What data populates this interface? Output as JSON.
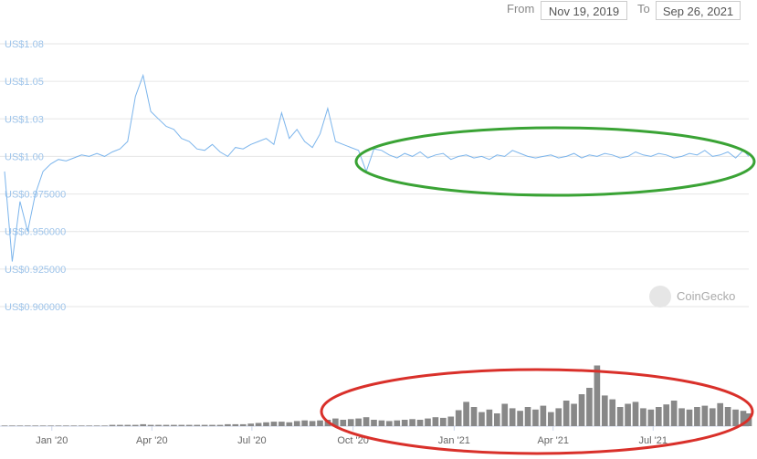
{
  "chart_data": {
    "type": "line",
    "from_label": "From",
    "from_value": "Nov 19, 2019",
    "to_label": "To",
    "to_value": "Sep 26, 2021",
    "watermark": "CoinGecko",
    "color": "#7cb5ec",
    "volume_color": "#888888",
    "xlim": [
      "2019-11-19",
      "2021-09-26"
    ],
    "xticks": [
      {
        "value": "2020-01-01",
        "label": "Jan '20"
      },
      {
        "value": "2020-04-01",
        "label": "Apr '20"
      },
      {
        "value": "2020-07-01",
        "label": "Jul '20"
      },
      {
        "value": "2020-10-01",
        "label": "Oct '20"
      },
      {
        "value": "2021-01-01",
        "label": "Jan '21"
      },
      {
        "value": "2021-04-01",
        "label": "Apr '21"
      },
      {
        "value": "2021-07-01",
        "label": "Jul '21"
      }
    ],
    "ylim": [
      0.9,
      1.075
    ],
    "yticks": [
      {
        "value": 1.075,
        "label": "US$1.08"
      },
      {
        "value": 1.05,
        "label": "US$1.05"
      },
      {
        "value": 1.025,
        "label": "US$1.03"
      },
      {
        "value": 1.0,
        "label": "US$1.00"
      },
      {
        "value": 0.975,
        "label": "US$0.975000"
      },
      {
        "value": 0.95,
        "label": "US$0.950000"
      },
      {
        "value": 0.925,
        "label": "US$0.925000"
      },
      {
        "value": 0.9,
        "label": "US$0.900000"
      }
    ],
    "grid": true,
    "volume_ylim": [
      0,
      100
    ],
    "x": [
      "2019-11-19",
      "2019-11-26",
      "2019-12-03",
      "2019-12-10",
      "2019-12-17",
      "2019-12-24",
      "2019-12-31",
      "2020-01-07",
      "2020-01-14",
      "2020-01-21",
      "2020-01-28",
      "2020-02-04",
      "2020-02-11",
      "2020-02-18",
      "2020-02-25",
      "2020-03-03",
      "2020-03-10",
      "2020-03-17",
      "2020-03-24",
      "2020-03-31",
      "2020-04-07",
      "2020-04-14",
      "2020-04-21",
      "2020-04-28",
      "2020-05-05",
      "2020-05-12",
      "2020-05-19",
      "2020-05-26",
      "2020-06-02",
      "2020-06-09",
      "2020-06-16",
      "2020-06-23",
      "2020-06-30",
      "2020-07-07",
      "2020-07-14",
      "2020-07-21",
      "2020-07-28",
      "2020-08-04",
      "2020-08-11",
      "2020-08-18",
      "2020-08-25",
      "2020-09-01",
      "2020-09-08",
      "2020-09-15",
      "2020-09-22",
      "2020-09-29",
      "2020-10-06",
      "2020-10-13",
      "2020-10-20",
      "2020-10-27",
      "2020-11-03",
      "2020-11-10",
      "2020-11-17",
      "2020-11-24",
      "2020-12-01",
      "2020-12-08",
      "2020-12-15",
      "2020-12-22",
      "2020-12-29",
      "2021-01-05",
      "2021-01-12",
      "2021-01-19",
      "2021-01-26",
      "2021-02-02",
      "2021-02-09",
      "2021-02-16",
      "2021-02-23",
      "2021-03-02",
      "2021-03-09",
      "2021-03-16",
      "2021-03-23",
      "2021-03-30",
      "2021-04-06",
      "2021-04-13",
      "2021-04-20",
      "2021-04-27",
      "2021-05-04",
      "2021-05-11",
      "2021-05-18",
      "2021-05-25",
      "2021-06-01",
      "2021-06-08",
      "2021-06-15",
      "2021-06-22",
      "2021-06-29",
      "2021-07-06",
      "2021-07-13",
      "2021-07-20",
      "2021-07-27",
      "2021-08-03",
      "2021-08-10",
      "2021-08-17",
      "2021-08-24",
      "2021-08-31",
      "2021-09-07",
      "2021-09-14",
      "2021-09-21",
      "2021-09-26"
    ],
    "values": [
      0.99,
      0.93,
      0.97,
      0.95,
      0.975,
      0.99,
      0.995,
      0.998,
      0.997,
      0.999,
      1.001,
      1.0,
      1.002,
      1.0,
      1.003,
      1.005,
      1.01,
      1.04,
      1.054,
      1.03,
      1.025,
      1.02,
      1.018,
      1.012,
      1.01,
      1.005,
      1.004,
      1.008,
      1.003,
      1.0,
      1.006,
      1.005,
      1.008,
      1.01,
      1.012,
      1.008,
      1.029,
      1.012,
      1.018,
      1.01,
      1.006,
      1.015,
      1.032,
      1.01,
      1.008,
      1.006,
      1.004,
      0.99,
      1.005,
      1.004,
      1.001,
      0.999,
      1.002,
      1.0,
      1.003,
      0.999,
      1.001,
      1.002,
      0.998,
      1.0,
      1.001,
      0.999,
      1.0,
      0.998,
      1.001,
      1.0,
      1.004,
      1.002,
      1.0,
      0.999,
      1.0,
      1.001,
      0.999,
      1.0,
      1.002,
      0.999,
      1.001,
      1.0,
      1.002,
      1.001,
      0.999,
      1.0,
      1.003,
      1.001,
      1.0,
      1.002,
      1.001,
      0.999,
      1.0,
      1.002,
      1.001,
      1.004,
      1.0,
      1.001,
      1.003,
      0.999,
      1.004,
      1.0
    ],
    "volume": [
      1,
      1,
      1,
      1,
      1,
      1,
      1,
      1,
      1,
      1,
      1,
      1,
      1,
      1,
      2,
      2,
      2,
      2,
      3,
      2,
      2,
      2,
      2,
      2,
      2,
      2,
      2,
      2,
      2,
      3,
      3,
      3,
      4,
      5,
      6,
      7,
      7,
      6,
      8,
      9,
      8,
      9,
      10,
      12,
      10,
      11,
      12,
      14,
      10,
      9,
      8,
      9,
      10,
      11,
      10,
      12,
      14,
      13,
      15,
      25,
      38,
      30,
      22,
      26,
      20,
      35,
      28,
      24,
      30,
      26,
      32,
      22,
      28,
      40,
      35,
      50,
      60,
      95,
      48,
      42,
      30,
      35,
      38,
      28,
      26,
      30,
      34,
      40,
      28,
      26,
      30,
      32,
      28,
      36,
      30,
      26,
      24,
      20
    ]
  }
}
